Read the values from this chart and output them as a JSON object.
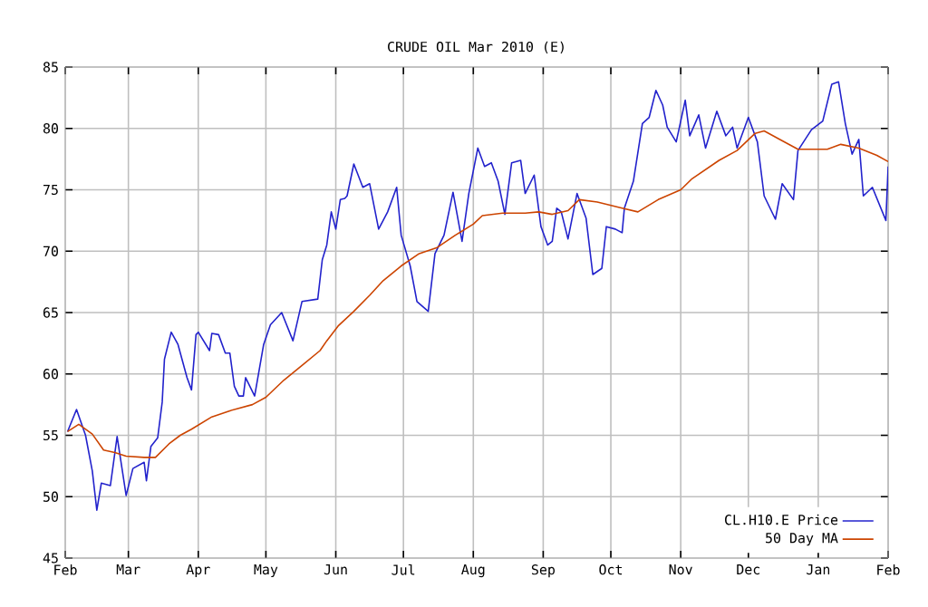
{
  "chart_data": {
    "type": "line",
    "title": "CRUDE OIL Mar 2010 (E)",
    "xlim": [
      "2009-02-01",
      "2010-02-01"
    ],
    "xticks": [
      {
        "value": "2009-02-01",
        "label": "Feb"
      },
      {
        "value": "2009-03-01",
        "label": "Mar"
      },
      {
        "value": "2009-04-01",
        "label": "Apr"
      },
      {
        "value": "2009-05-01",
        "label": "May"
      },
      {
        "value": "2009-06-01",
        "label": "Jun"
      },
      {
        "value": "2009-07-01",
        "label": "Jul"
      },
      {
        "value": "2009-08-01",
        "label": "Aug"
      },
      {
        "value": "2009-09-01",
        "label": "Sep"
      },
      {
        "value": "2009-10-01",
        "label": "Oct"
      },
      {
        "value": "2009-11-01",
        "label": "Nov"
      },
      {
        "value": "2009-12-01",
        "label": "Dec"
      },
      {
        "value": "2010-01-01",
        "label": "Jan"
      },
      {
        "value": "2010-02-01",
        "label": "Feb"
      }
    ],
    "ylim": [
      45,
      85
    ],
    "yticks": [
      45,
      50,
      55,
      60,
      65,
      70,
      75,
      80,
      85
    ],
    "grid": true,
    "legend": "bottom right",
    "marker": "none",
    "line_style": "solid",
    "series": [
      {
        "name": "CL.H10.E Price",
        "color": "#2222cc",
        "x": [
          "2009-02-02",
          "2009-02-06",
          "2009-02-10",
          "2009-02-13",
          "2009-02-15",
          "2009-02-17",
          "2009-02-21",
          "2009-02-24",
          "2009-02-28",
          "2009-03-03",
          "2009-03-08",
          "2009-03-09",
          "2009-03-11",
          "2009-03-14",
          "2009-03-16",
          "2009-03-17",
          "2009-03-20",
          "2009-03-23",
          "2009-03-27",
          "2009-03-29",
          "2009-03-31",
          "2009-04-01",
          "2009-04-06",
          "2009-04-07",
          "2009-04-10",
          "2009-04-13",
          "2009-04-15",
          "2009-04-17",
          "2009-04-19",
          "2009-04-21",
          "2009-04-22",
          "2009-04-26",
          "2009-04-30",
          "2009-05-03",
          "2009-05-08",
          "2009-05-13",
          "2009-05-17",
          "2009-05-24",
          "2009-05-26",
          "2009-05-28",
          "2009-05-30",
          "2009-06-01",
          "2009-06-03",
          "2009-06-05",
          "2009-06-06",
          "2009-06-09",
          "2009-06-13",
          "2009-06-16",
          "2009-06-20",
          "2009-06-24",
          "2009-06-28",
          "2009-06-30",
          "2009-07-04",
          "2009-07-07",
          "2009-07-12",
          "2009-07-15",
          "2009-07-19",
          "2009-07-23",
          "2009-07-27",
          "2009-07-30",
          "2009-08-03",
          "2009-08-06",
          "2009-08-09",
          "2009-08-12",
          "2009-08-15",
          "2009-08-18",
          "2009-08-22",
          "2009-08-24",
          "2009-08-28",
          "2009-08-31",
          "2009-09-03",
          "2009-09-05",
          "2009-09-07",
          "2009-09-09",
          "2009-09-12",
          "2009-09-16",
          "2009-09-20",
          "2009-09-23",
          "2009-09-27",
          "2009-09-29",
          "2009-10-03",
          "2009-10-06",
          "2009-10-07",
          "2009-10-11",
          "2009-10-15",
          "2009-10-18",
          "2009-10-21",
          "2009-10-24",
          "2009-10-26",
          "2009-10-30",
          "2009-11-03",
          "2009-11-05",
          "2009-11-09",
          "2009-11-12",
          "2009-11-17",
          "2009-11-21",
          "2009-11-24",
          "2009-11-26",
          "2009-12-01",
          "2009-12-05",
          "2009-12-08",
          "2009-12-13",
          "2009-12-16",
          "2009-12-21",
          "2009-12-23",
          "2009-12-29",
          "2010-01-03",
          "2010-01-07",
          "2010-01-10",
          "2010-01-13",
          "2010-01-16",
          "2010-01-19",
          "2010-01-21",
          "2010-01-25",
          "2010-01-31",
          "2010-02-01"
        ],
        "values": [
          55.3,
          57.1,
          55.0,
          52.1,
          48.9,
          51.1,
          50.9,
          54.9,
          50.1,
          52.3,
          52.8,
          51.3,
          54.1,
          54.8,
          57.7,
          61.2,
          63.4,
          62.4,
          59.7,
          58.7,
          63.2,
          63.4,
          61.9,
          63.3,
          63.2,
          61.7,
          61.7,
          59.0,
          58.2,
          58.2,
          59.7,
          58.2,
          62.4,
          64.0,
          65.0,
          62.7,
          65.9,
          66.1,
          69.3,
          70.5,
          73.2,
          71.8,
          74.2,
          74.3,
          74.5,
          77.1,
          75.2,
          75.5,
          71.8,
          73.2,
          75.2,
          71.3,
          68.8,
          65.9,
          65.1,
          69.8,
          71.3,
          74.8,
          70.8,
          74.7,
          78.4,
          76.9,
          77.2,
          75.7,
          73.0,
          77.2,
          77.4,
          74.7,
          76.2,
          72.0,
          70.5,
          70.8,
          73.5,
          73.2,
          71.0,
          74.7,
          72.7,
          68.1,
          68.6,
          72.0,
          71.8,
          71.5,
          73.5,
          75.7,
          80.4,
          80.9,
          83.1,
          81.9,
          80.1,
          78.9,
          82.3,
          79.4,
          81.1,
          78.4,
          81.4,
          79.4,
          80.1,
          78.4,
          80.9,
          78.9,
          74.5,
          72.6,
          75.5,
          74.2,
          78.2,
          79.9,
          80.6,
          83.6,
          83.8,
          80.4,
          77.9,
          79.1,
          74.5,
          75.2,
          72.5,
          76.9
        ]
      },
      {
        "name": "50 Day MA",
        "color": "#cc4400",
        "x": [
          "2009-02-02",
          "2009-02-07",
          "2009-02-13",
          "2009-02-18",
          "2009-02-23",
          "2009-02-28",
          "2009-03-08",
          "2009-03-13",
          "2009-03-19",
          "2009-03-24",
          "2009-03-29",
          "2009-04-07",
          "2009-04-15",
          "2009-04-25",
          "2009-05-01",
          "2009-05-09",
          "2009-05-17",
          "2009-05-25",
          "2009-05-28",
          "2009-06-02",
          "2009-06-09",
          "2009-06-16",
          "2009-06-22",
          "2009-06-30",
          "2009-07-08",
          "2009-07-16",
          "2009-07-24",
          "2009-08-01",
          "2009-08-05",
          "2009-08-14",
          "2009-08-24",
          "2009-08-30",
          "2009-09-05",
          "2009-09-12",
          "2009-09-17",
          "2009-09-25",
          "2009-10-06",
          "2009-10-13",
          "2009-10-22",
          "2009-11-01",
          "2009-11-06",
          "2009-11-18",
          "2009-11-26",
          "2009-12-04",
          "2009-12-08",
          "2009-12-15",
          "2009-12-23",
          "2010-01-05",
          "2010-01-11",
          "2010-01-19",
          "2010-01-27",
          "2010-02-01"
        ],
        "values": [
          55.3,
          55.9,
          55.1,
          53.8,
          53.6,
          53.3,
          53.2,
          53.2,
          54.3,
          55.0,
          55.5,
          56.5,
          57.0,
          57.5,
          58.1,
          59.5,
          60.7,
          61.9,
          62.7,
          63.9,
          65.1,
          66.4,
          67.6,
          68.8,
          69.8,
          70.3,
          71.3,
          72.2,
          72.9,
          73.1,
          73.1,
          73.2,
          73.0,
          73.3,
          74.2,
          74.0,
          73.5,
          73.2,
          74.2,
          75.0,
          75.9,
          77.4,
          78.2,
          79.6,
          79.8,
          79.1,
          78.3,
          78.3,
          78.7,
          78.4,
          77.8,
          77.3
        ]
      }
    ]
  }
}
